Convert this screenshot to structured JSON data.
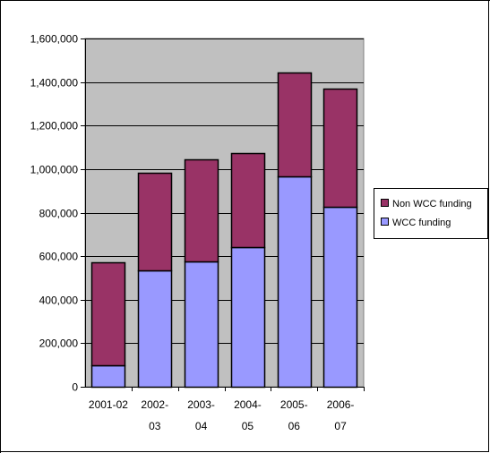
{
  "colors": {
    "plot_bg": "#c0c0c0",
    "non_wcc": "#993366",
    "wcc": "#9999ff",
    "outline": "#000000"
  },
  "chart_data": {
    "type": "bar",
    "stacked": true,
    "title": "",
    "xlabel": "",
    "ylabel": "",
    "categories": [
      [
        "2001-02"
      ],
      [
        "2002-",
        "03"
      ],
      [
        "2003-",
        "04"
      ],
      [
        "2004-",
        "05"
      ],
      [
        "2005-",
        "06"
      ],
      [
        "2006-",
        "07"
      ]
    ],
    "series": [
      {
        "name": "WCC funding",
        "values": [
          100000,
          535000,
          575000,
          640000,
          965000,
          825000
        ]
      },
      {
        "name": "Non WCC funding",
        "values": [
          470000,
          450000,
          470000,
          435000,
          480000,
          545000
        ]
      }
    ],
    "ylim": [
      0,
      1600000
    ],
    "yticks": [
      0,
      200000,
      400000,
      600000,
      800000,
      1000000,
      1200000,
      1400000,
      1600000
    ],
    "ytick_labels": [
      "0",
      "200,000",
      "400,000",
      "600,000",
      "800,000",
      "1,000,000",
      "1,200,000",
      "1,400,000",
      "1,600,000"
    ],
    "grid": true,
    "legend_position": "right",
    "legend_order": [
      "Non WCC funding",
      "WCC funding"
    ]
  }
}
